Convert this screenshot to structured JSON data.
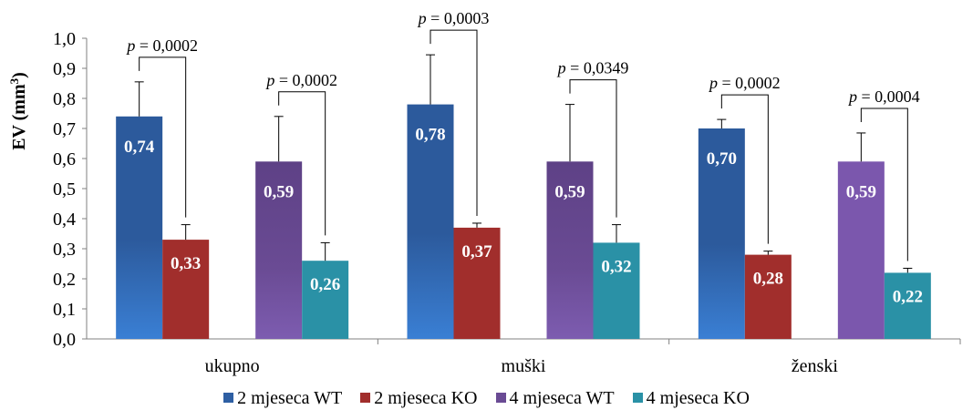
{
  "chart_data": {
    "type": "bar",
    "ylabel": "EV (mm",
    "ylabel_sup": "3",
    "ylabel_close": ")",
    "ylim": [
      0,
      1.0
    ],
    "yticks": [
      "0,0",
      "0,1",
      "0,2",
      "0,3",
      "0,4",
      "0,5",
      "0,6",
      "0,7",
      "0,8",
      "0,9",
      "1,0"
    ],
    "grid": false,
    "legend_position": "bottom",
    "categories": [
      "ukupno",
      "muški",
      "ženski"
    ],
    "series": [
      {
        "name": "2 mjeseca WT",
        "color": "#2e5fa3",
        "values": [
          0.74,
          0.78,
          0.7
        ],
        "labels": [
          "0,74",
          "0,78",
          "0,70"
        ],
        "errors": [
          0.115,
          0.165,
          0.03
        ]
      },
      {
        "name": "2 mjeseca KO",
        "color": "#a12e2c",
        "values": [
          0.33,
          0.37,
          0.28
        ],
        "labels": [
          "0,33",
          "0,37",
          "0,28"
        ],
        "errors": [
          0.05,
          0.015,
          0.012
        ]
      },
      {
        "name": "4 mjeseca WT",
        "color": "#6a4b94",
        "values": [
          0.59,
          0.59,
          0.59
        ],
        "labels": [
          "0,59",
          "0,59",
          "0,59"
        ],
        "errors": [
          0.15,
          0.19,
          0.095
        ]
      },
      {
        "name": "4 mjeseca KO",
        "color": "#2a91a6",
        "values": [
          0.26,
          0.32,
          0.22
        ],
        "labels": [
          "0,26",
          "0,32",
          "0,22"
        ],
        "errors": [
          0.06,
          0.06,
          0.015
        ]
      }
    ],
    "annotations": [
      {
        "category": 0,
        "pair": [
          0,
          1
        ],
        "p_symbol": "p",
        "text": " = 0,0002"
      },
      {
        "category": 0,
        "pair": [
          2,
          3
        ],
        "p_symbol": "p",
        "text": " = 0,0002"
      },
      {
        "category": 1,
        "pair": [
          0,
          1
        ],
        "p_symbol": "p",
        "text": " = 0,0003"
      },
      {
        "category": 1,
        "pair": [
          2,
          3
        ],
        "p_symbol": "p",
        "text": " = 0,0349"
      },
      {
        "category": 2,
        "pair": [
          0,
          1
        ],
        "p_symbol": "p",
        "text": " = 0,0002"
      },
      {
        "category": 2,
        "pair": [
          2,
          3
        ],
        "p_symbol": "p",
        "text": " = 0,0004"
      }
    ]
  }
}
